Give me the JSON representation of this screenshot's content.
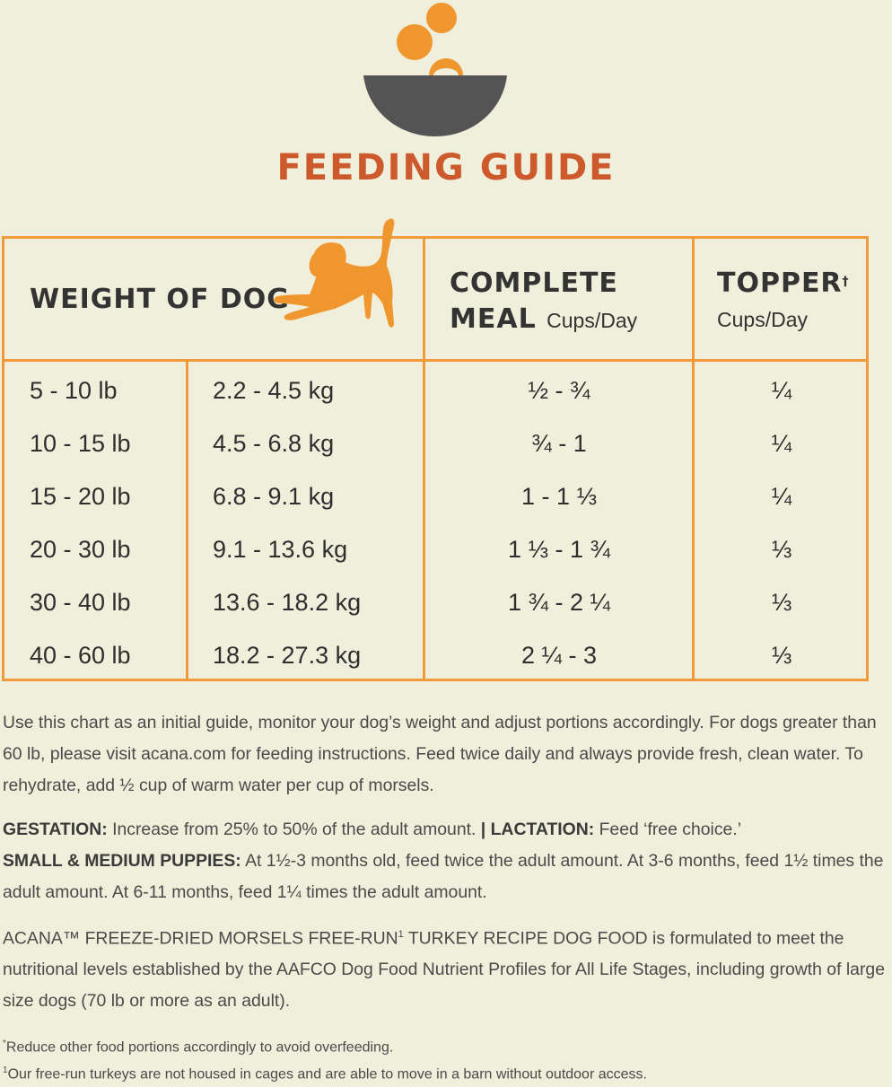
{
  "header": {
    "title": "FEEDING GUIDE"
  },
  "table": {
    "weight_header": "WEIGHT OF DOG",
    "complete_header": "COMPLETE",
    "complete_header_line2": "MEAL",
    "complete_unit": "Cups/Day",
    "topper_header": "TOPPER",
    "topper_mark": "†",
    "topper_unit": "Cups/Day",
    "rows": [
      {
        "lb": "5 - 10 lb",
        "kg": "2.2 - 4.5 kg",
        "meal": "½ - ¾",
        "topper": "¼"
      },
      {
        "lb": "10 - 15 lb",
        "kg": "4.5 - 6.8 kg",
        "meal": "¾ -  1",
        "topper": "¼"
      },
      {
        "lb": "15 - 20 lb",
        "kg": "6.8 - 9.1 kg",
        "meal": "1 - 1 ⅓",
        "topper": "¼"
      },
      {
        "lb": "20 - 30 lb",
        "kg": "9.1 - 13.6 kg",
        "meal": "1 ⅓ - 1 ¾",
        "topper": "⅓"
      },
      {
        "lb": "30 - 40 lb",
        "kg": "13.6 - 18.2 kg",
        "meal": "1 ¾ - 2 ¼",
        "topper": "⅓"
      },
      {
        "lb": "40 - 60 lb",
        "kg": "18.2 - 27.3 kg",
        "meal": "2 ¼ - 3",
        "topper": "⅓"
      }
    ]
  },
  "notes": {
    "intro": "Use this chart as an initial guide, monitor your dog’s weight and adjust portions accordingly. For dogs greater than 60 lb, please visit acana.com for feeding instructions. Feed twice daily and always provide fresh, clean water. To rehydrate, add ½ cup of warm water per cup of morsels.",
    "gestation_label": "GESTATION:",
    "gestation_text": " Increase from 25% to 50% of the adult amount. ",
    "separator": "|",
    "lactation_label": " LACTATION:",
    "lactation_text": " Feed ‘free choice.’",
    "puppies_label": "SMALL & MEDIUM PUPPIES:",
    "puppies_text": " At 1½-3 months old, feed twice the adult amount. At 3-6 months, feed 1½ times the adult amount. At 6-11 months, feed 1¼ times the adult amount.",
    "aafco_text_1": "ACANA™ FREEZE-DRIED MORSELS FREE-RUN",
    "aafco_sup": "1",
    "aafco_text_2": " TURKEY RECIPE DOG FOOD is formulated to meet the nutritional levels established by the AAFCO Dog Food Nutrient Profiles for All Life Stages, including growth of large size dogs (70 lb or more as an adult)."
  },
  "footnotes": {
    "dagger_mark": "*",
    "dagger_text": "Reduce other food portions accordingly to avoid overfeeding.",
    "one_mark": "1",
    "one_text": "Our free-run turkeys are not housed in cages and are able to move in a barn without outdoor access."
  },
  "colors": {
    "background": "#f0efdb",
    "accent_orange": "#f09a3c",
    "title_red": "#cc5a2d",
    "bowl_gray": "#545454"
  },
  "icons": {
    "logo": "food-bowl-icon",
    "dog": "playful-dog-icon"
  }
}
